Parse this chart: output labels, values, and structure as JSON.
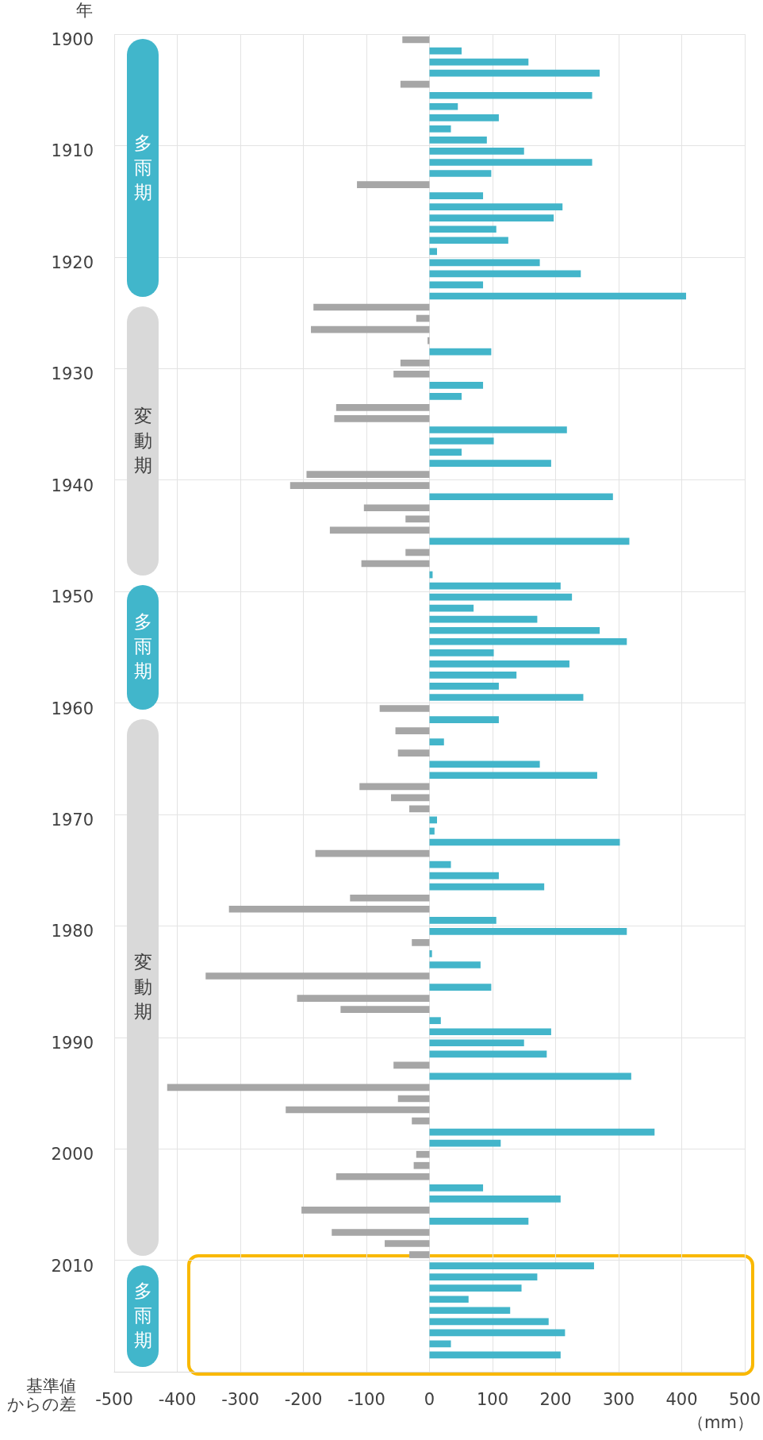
{
  "chart_data": {
    "type": "bar",
    "orientation": "horizontal",
    "ylabel": "年",
    "xlabel": "基準値からの差",
    "annotations": [
      "多雨期",
      "変動期",
      "多雨期",
      "変動期",
      "多雨期",
      "（mm）"
    ],
    "categories": [
      "1900",
      null,
      null,
      null,
      null,
      null,
      null,
      null,
      null,
      null,
      "1910",
      null,
      null,
      null,
      null,
      null,
      null,
      null,
      null,
      null,
      "1920",
      null,
      null,
      null,
      null,
      null,
      null,
      null,
      null,
      null,
      "1930",
      null,
      null,
      null,
      null,
      null,
      null,
      null,
      null,
      null,
      "1940",
      null,
      null,
      null,
      null,
      null,
      null,
      null,
      null,
      null,
      "1950",
      null,
      null,
      null,
      null,
      null,
      null,
      null,
      null,
      null,
      "1960",
      null,
      null,
      null,
      null,
      null,
      null,
      null,
      null,
      null,
      "1970",
      null,
      null,
      null,
      null,
      null,
      null,
      null,
      null,
      null,
      "1980",
      null,
      null,
      null,
      null,
      null,
      null,
      null,
      null,
      null,
      "1990",
      null,
      null,
      null,
      null,
      null,
      null,
      null,
      null,
      null,
      "2000",
      null,
      null,
      null,
      null,
      null,
      null,
      null,
      null,
      null,
      "2010",
      null,
      null,
      null,
      null,
      null,
      null,
      null,
      null,
      null
    ],
    "values": [
      -43,
      51,
      157,
      270,
      -46,
      258,
      45,
      110,
      34,
      91,
      150,
      258,
      98,
      -115,
      85,
      211,
      197,
      106,
      125,
      12,
      175,
      240,
      85,
      407,
      -184,
      -21,
      -188,
      -3,
      98,
      -46,
      -57,
      85,
      51,
      -148,
      -151,
      218,
      102,
      51,
      193,
      -195,
      -221,
      291,
      -104,
      -38,
      -158,
      317,
      -38,
      -108,
      5,
      208,
      226,
      70,
      171,
      270,
      313,
      102,
      222,
      138,
      110,
      244,
      -79,
      110,
      -54,
      23,
      -50,
      175,
      266,
      -111,
      -61,
      -32,
      12,
      8,
      302,
      -181,
      34,
      110,
      182,
      -126,
      -318,
      106,
      313,
      -28,
      4,
      81,
      -355,
      98,
      -210,
      -141,
      18,
      193,
      150,
      186,
      -57,
      320,
      -416,
      -50,
      -228,
      -28,
      357,
      113,
      -21,
      -25,
      -148,
      85,
      208,
      -203,
      157,
      -155,
      -71,
      -32,
      261,
      171,
      146,
      62,
      128,
      189,
      215,
      34,
      208,
      null
    ],
    "colors": [
      "#a6a6a6",
      "#43b5ca",
      "#43b5ca",
      "#43b5ca",
      "#a6a6a6",
      "#43b5ca",
      "#43b5ca",
      "#43b5ca",
      "#43b5ca",
      "#43b5ca",
      "#43b5ca",
      "#43b5ca",
      "#43b5ca",
      "#a6a6a6",
      "#43b5ca",
      "#43b5ca",
      "#43b5ca",
      "#43b5ca",
      "#43b5ca",
      "#43b5ca",
      "#43b5ca",
      "#43b5ca",
      "#43b5ca",
      "#43b5ca",
      "#a6a6a6",
      "#a6a6a6",
      "#a6a6a6",
      "#a6a6a6",
      "#43b5ca",
      "#a6a6a6",
      "#a6a6a6",
      "#43b5ca",
      "#43b5ca",
      "#a6a6a6",
      "#a6a6a6",
      "#43b5ca",
      "#43b5ca",
      "#43b5ca",
      "#43b5ca",
      "#a6a6a6",
      "#a6a6a6",
      "#43b5ca",
      "#a6a6a6",
      "#a6a6a6",
      "#a6a6a6",
      "#43b5ca",
      "#a6a6a6",
      "#a6a6a6",
      "#43b5ca",
      "#43b5ca",
      "#43b5ca",
      "#43b5ca",
      "#43b5ca",
      "#43b5ca",
      "#43b5ca",
      "#43b5ca",
      "#43b5ca",
      "#43b5ca",
      "#43b5ca",
      "#43b5ca",
      "#a6a6a6",
      "#43b5ca",
      "#a6a6a6",
      "#43b5ca",
      "#a6a6a6",
      "#43b5ca",
      "#43b5ca",
      "#a6a6a6",
      "#a6a6a6",
      "#a6a6a6",
      "#43b5ca",
      "#43b5ca",
      "#43b5ca",
      "#a6a6a6",
      "#43b5ca",
      "#43b5ca",
      "#43b5ca",
      "#a6a6a6",
      "#a6a6a6",
      "#43b5ca",
      "#43b5ca",
      "#a6a6a6",
      "#43b5ca",
      "#43b5ca",
      "#a6a6a6",
      "#43b5ca",
      "#a6a6a6",
      "#a6a6a6",
      "#43b5ca",
      "#43b5ca",
      "#43b5ca",
      "#43b5ca",
      "#a6a6a6",
      "#43b5ca",
      "#a6a6a6",
      "#a6a6a6",
      "#a6a6a6",
      "#a6a6a6",
      "#43b5ca",
      "#43b5ca",
      "#a6a6a6",
      "#a6a6a6",
      "#a6a6a6",
      "#43b5ca",
      "#43b5ca",
      "#a6a6a6",
      "#43b5ca",
      "#a6a6a6",
      "#a6a6a6",
      "#a6a6a6",
      "#43b5ca",
      "#43b5ca",
      "#43b5ca",
      "#43b5ca",
      "#43b5ca",
      "#43b5ca",
      "#43b5ca",
      "#43b5ca",
      "#43b5ca",
      null
    ],
    "xlim": [
      -500,
      500
    ],
    "xticks": [
      -500,
      -400,
      -300,
      -200,
      -100,
      0,
      100,
      200,
      300,
      400,
      500
    ],
    "grid": true
  }
}
